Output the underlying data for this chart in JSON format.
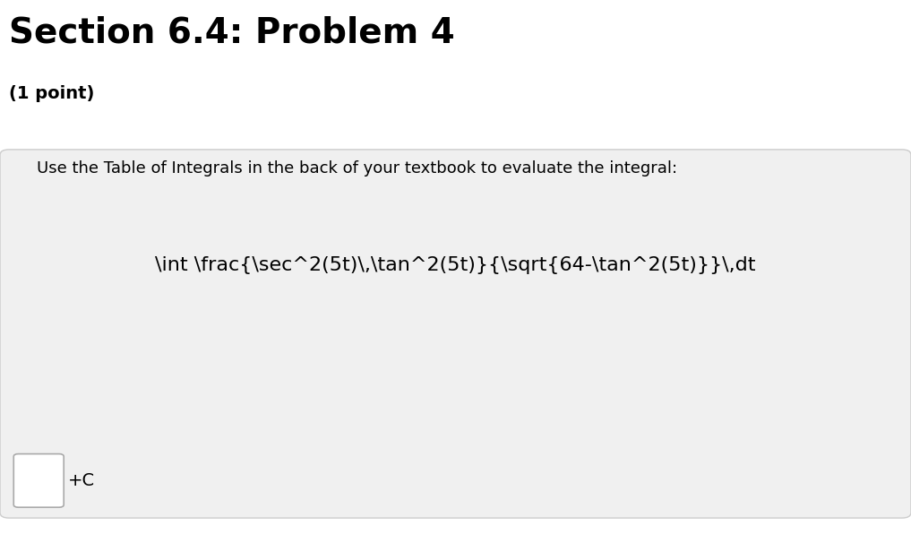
{
  "title": "Section 6.4: Problem 4",
  "subtitle": "(1 point)",
  "instruction": "Use the Table of Integrals in the back of your textbook to evaluate the integral:",
  "integral_latex": "\\int \\frac{\\sec^2(5t)\\,\\tan^2(5t)}{\\sqrt{64-\\tan^2(5t)}}\\,dt",
  "answer_suffix": "+C",
  "bg_color": "#ffffff",
  "box_bg_color": "#f0f0f0",
  "box_border_color": "#cccccc",
  "title_color": "#000000",
  "subtitle_color": "#000000",
  "text_color": "#000000",
  "title_fontsize": 28,
  "subtitle_fontsize": 14,
  "instruction_fontsize": 13,
  "integral_fontsize": 16,
  "answer_fontsize": 14
}
